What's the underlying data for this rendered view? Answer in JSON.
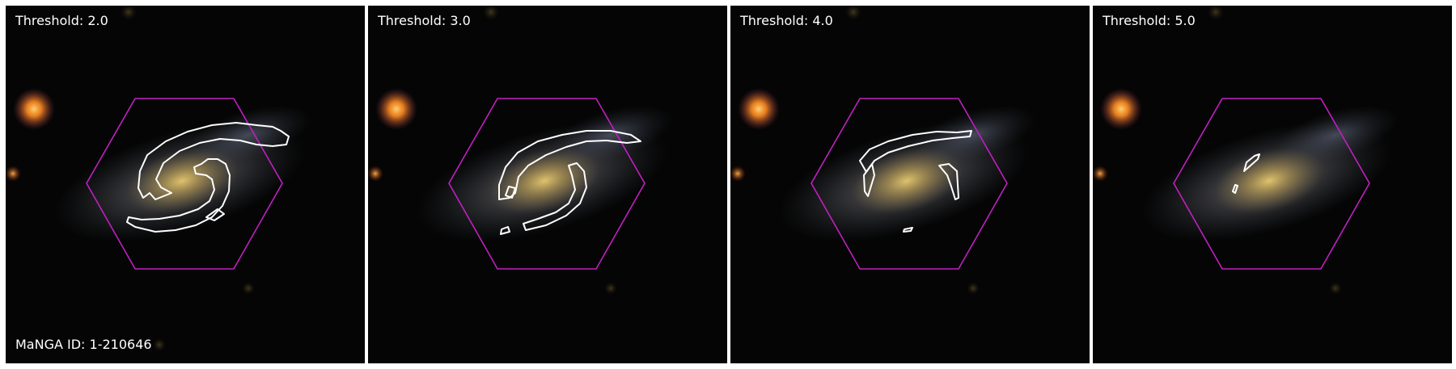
{
  "colors": {
    "contour": "#ffffff",
    "hexagon": "#c020c0",
    "background": "#000000",
    "galaxy_core": "#c8a85a",
    "star": "#ffa030"
  },
  "panels": [
    {
      "threshold_label": "Threshold: 2.0"
    },
    {
      "threshold_label": "Threshold: 3.0"
    },
    {
      "threshold_label": "Threshold: 4.0"
    },
    {
      "threshold_label": "Threshold: 5.0"
    }
  ],
  "manga_id": "MaNGA ID: 1-210646"
}
